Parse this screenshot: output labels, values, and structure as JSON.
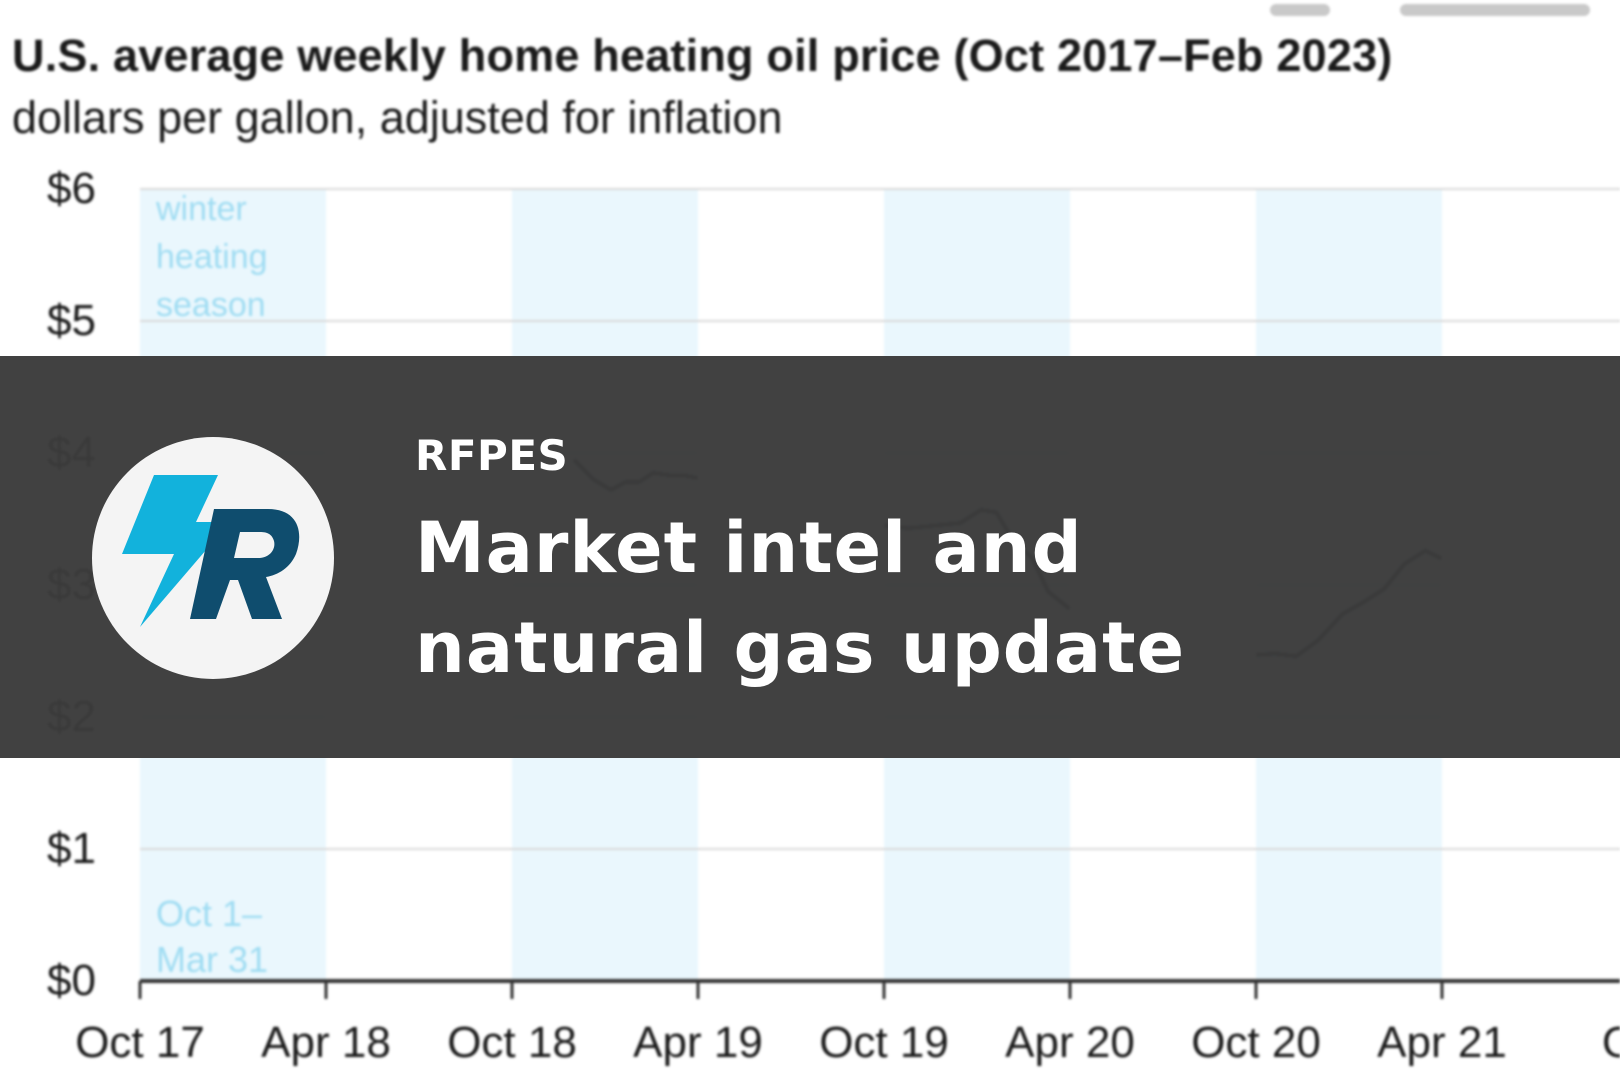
{
  "chart_data": {
    "type": "line",
    "title": "U.S. average weekly home heating oil price (Oct 2017–Feb 2023)",
    "subtitle": "dollars per gallon, adjusted for inflation",
    "xlabel": "",
    "ylabel": "",
    "ylim": [
      0,
      6
    ],
    "y_ticks": [
      "$6",
      "$5",
      "$4",
      "$3",
      "$2",
      "$1",
      "$0"
    ],
    "y_tick_values": [
      6,
      5,
      4,
      3,
      2,
      1,
      0
    ],
    "x_ticks": [
      "Oct 17",
      "Apr 18",
      "Oct 18",
      "Apr 19",
      "Oct 19",
      "Apr 20",
      "Oct 20",
      "Apr 21",
      "Oc"
    ],
    "x_tick_dates": [
      "2017-10",
      "2018-04",
      "2018-10",
      "2019-04",
      "2019-10",
      "2020-04",
      "2020-10",
      "2021-04",
      "2021-10"
    ],
    "grid": true,
    "shaded_periods": [
      {
        "start": "2017-10",
        "end": "2018-04"
      },
      {
        "start": "2018-10",
        "end": "2019-04"
      },
      {
        "start": "2019-10",
        "end": "2020-04"
      },
      {
        "start": "2020-10",
        "end": "2021-04"
      }
    ],
    "annotations": {
      "season_label": [
        "winter",
        "heating",
        "season"
      ],
      "season_dates": [
        "Oct 1–",
        "Mar 31"
      ]
    },
    "series": [
      {
        "color": "#2a3036",
        "segments": [
          [
            {
              "x": "2018-12-01",
              "y": 3.95
            },
            {
              "x": "2018-12-20",
              "y": 3.8
            },
            {
              "x": "2019-01-07",
              "y": 3.72
            },
            {
              "x": "2019-01-21",
              "y": 3.78
            },
            {
              "x": "2019-02-04",
              "y": 3.78
            },
            {
              "x": "2019-02-18",
              "y": 3.85
            },
            {
              "x": "2019-03-04",
              "y": 3.83
            },
            {
              "x": "2019-03-18",
              "y": 3.83
            },
            {
              "x": "2019-03-31",
              "y": 3.81
            }
          ],
          [
            {
              "x": "2019-10-01",
              "y": 3.45
            },
            {
              "x": "2019-10-25",
              "y": 3.43
            },
            {
              "x": "2019-11-20",
              "y": 3.45
            },
            {
              "x": "2019-12-15",
              "y": 3.47
            },
            {
              "x": "2020-01-05",
              "y": 3.57
            },
            {
              "x": "2020-01-20",
              "y": 3.55
            },
            {
              "x": "2020-02-05",
              "y": 3.35
            },
            {
              "x": "2020-02-25",
              "y": 3.2
            },
            {
              "x": "2020-03-10",
              "y": 2.95
            },
            {
              "x": "2020-03-31",
              "y": 2.82
            }
          ],
          [
            {
              "x": "2020-10-01",
              "y": 2.47
            },
            {
              "x": "2020-10-20",
              "y": 2.48
            },
            {
              "x": "2020-11-10",
              "y": 2.46
            },
            {
              "x": "2020-12-01",
              "y": 2.58
            },
            {
              "x": "2020-12-25",
              "y": 2.78
            },
            {
              "x": "2021-01-15",
              "y": 2.87
            },
            {
              "x": "2021-02-05",
              "y": 2.97
            },
            {
              "x": "2021-02-25",
              "y": 3.16
            },
            {
              "x": "2021-03-15",
              "y": 3.26
            },
            {
              "x": "2021-03-31",
              "y": 3.2
            }
          ]
        ]
      }
    ]
  },
  "overlay": {
    "brand": "RFPES",
    "headline_line1": "Market intel and",
    "headline_line2": "natural gas update",
    "background_color": "#3b3b3b",
    "text_color": "#ffffff",
    "logo": {
      "icon": "rfpes-logo-icon",
      "colors": {
        "bolt": "#12b2dc",
        "letter": "#0f4d6e",
        "circle": "#f4f4f4"
      }
    }
  },
  "colors": {
    "shade": "#eaf7fd",
    "annotation_text": "#9fdcf2",
    "gridline": "#d9d9d9",
    "axis": "#333333",
    "tick_label": "#1a1a1a"
  }
}
